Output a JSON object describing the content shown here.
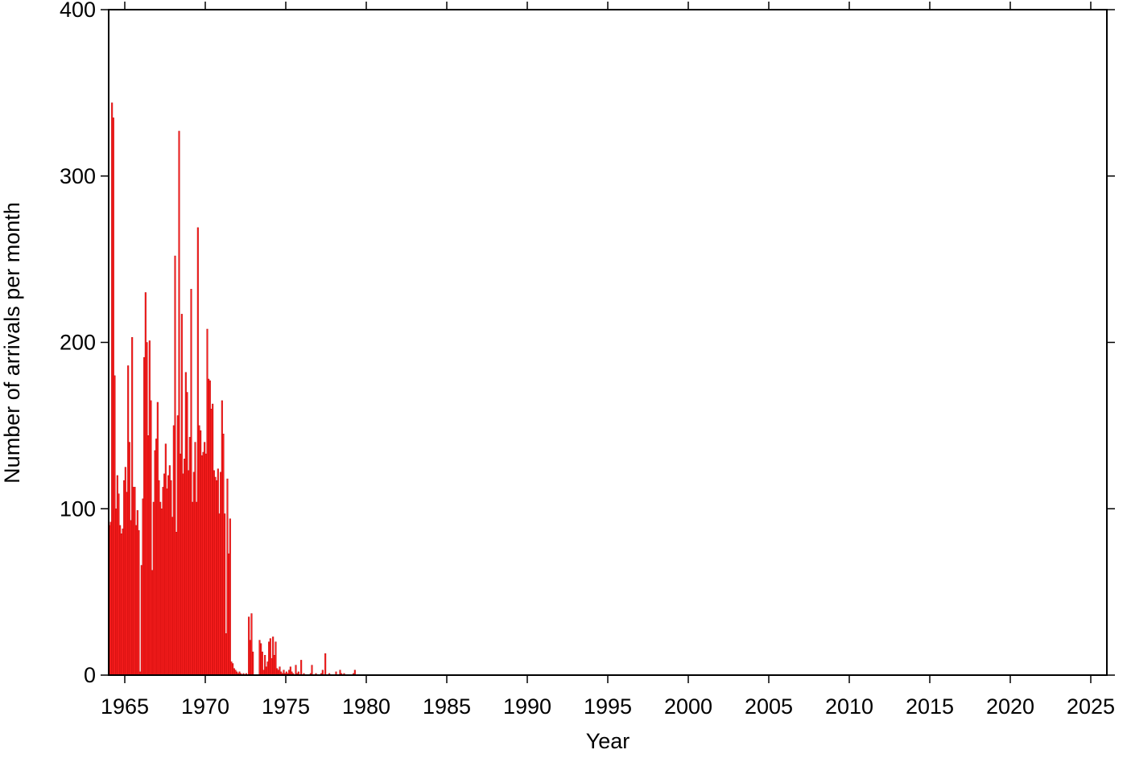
{
  "chart_data": {
    "type": "histogram",
    "x_label": "Year",
    "y_label": "Number of arrivals per month",
    "color": "#ff2020",
    "xlim": [
      1964,
      2026
    ],
    "xticks": [
      1965,
      1970,
      1975,
      1980,
      1985,
      1990,
      1995,
      2000,
      2005,
      2010,
      2015,
      2020,
      2025
    ],
    "ylim": [
      0,
      400
    ],
    "yticks": [
      0,
      100,
      200,
      300,
      400
    ],
    "bins": [
      1964,
      1964.083,
      1964.167,
      1964.25,
      1964.333,
      1964.417,
      1964.5,
      1964.583,
      1964.667,
      1964.75,
      1964.833,
      1964.917,
      1965,
      1965.083,
      1965.167,
      1965.25,
      1965.333,
      1965.417,
      1965.5,
      1965.583,
      1965.667,
      1965.75,
      1965.833,
      1965.917,
      1966,
      1966.083,
      1966.167,
      1966.25,
      1966.333,
      1966.417,
      1966.5,
      1966.583,
      1966.667,
      1966.75,
      1966.833,
      1966.917,
      1967,
      1967.083,
      1967.167,
      1967.25,
      1967.333,
      1967.417,
      1967.5,
      1967.583,
      1967.667,
      1967.75,
      1967.833,
      1967.917,
      1968,
      1968.083,
      1968.167,
      1968.25,
      1968.333,
      1968.417,
      1968.5,
      1968.583,
      1968.667,
      1968.75,
      1968.833,
      1968.917,
      1969,
      1969.083,
      1969.167,
      1969.25,
      1969.333,
      1969.417,
      1969.5,
      1969.583,
      1969.667,
      1969.75,
      1969.833,
      1969.917,
      1970,
      1970.083,
      1970.167,
      1970.25,
      1970.333,
      1970.417,
      1970.5,
      1970.583,
      1970.667,
      1970.75,
      1970.833,
      1970.917,
      1971,
      1971.083,
      1971.167,
      1971.25,
      1971.333,
      1971.417,
      1971.5,
      1971.583,
      1971.667,
      1971.75,
      1971.833,
      1971.917,
      1972,
      1972.083,
      1972.167,
      1972.25,
      1972.333,
      1972.417,
      1972.5,
      1972.583,
      1972.667,
      1972.75,
      1972.833,
      1972.917,
      1973,
      1973.083,
      1973.167,
      1973.25,
      1973.333,
      1973.417,
      1973.5,
      1973.583,
      1973.667,
      1973.75,
      1973.833,
      1973.917,
      1974,
      1974.083,
      1974.167,
      1974.25,
      1974.333,
      1974.417,
      1974.5,
      1974.583,
      1974.667,
      1974.75,
      1974.833,
      1974.917,
      1975,
      1975.083,
      1975.167,
      1975.25,
      1975.333,
      1975.417,
      1975.5,
      1975.583,
      1975.667,
      1975.75,
      1975.833,
      1975.917,
      1976,
      1976.083,
      1976.167,
      1976.25,
      1976.333,
      1976.417,
      1976.5,
      1976.583,
      1976.667,
      1976.75,
      1976.833,
      1976.917,
      1977,
      1977.083,
      1977.167,
      1977.25,
      1977.333,
      1977.417,
      1977.5,
      1977.583,
      1977.667,
      1977.75,
      1977.833,
      1977.917,
      1978,
      1978.083,
      1978.167,
      1978.25,
      1978.333,
      1978.417,
      1978.5,
      1978.583,
      1978.667,
      1978.75,
      1978.833,
      1978.917,
      1979,
      1979.083,
      1979.167,
      1979.25,
      1979.333,
      1979.417,
      1979.5,
      1979.583,
      1979.667,
      1979.75,
      1979.833,
      1979.917,
      1980
    ],
    "values": [
      90,
      92,
      344,
      335,
      180,
      100,
      120,
      109,
      90,
      85,
      88,
      117,
      125,
      110,
      186,
      140,
      93,
      203,
      113,
      113,
      90,
      99,
      87,
      2,
      66,
      106,
      191,
      230,
      200,
      144,
      201,
      165,
      63,
      104,
      135,
      142,
      164,
      117,
      104,
      100,
      113,
      121,
      139,
      112,
      120,
      126,
      117,
      95,
      150,
      252,
      86,
      156,
      327,
      133,
      217,
      121,
      130,
      182,
      170,
      123,
      143,
      232,
      104,
      122,
      140,
      104,
      269,
      150,
      147,
      132,
      134,
      140,
      133,
      208,
      178,
      177,
      160,
      163,
      123,
      119,
      117,
      124,
      97,
      122,
      165,
      145,
      97,
      25,
      118,
      73,
      94,
      8,
      7,
      4,
      3,
      2,
      1,
      2,
      1,
      0,
      1,
      0,
      1,
      0,
      35,
      21,
      37,
      14,
      0,
      0,
      0,
      0,
      21,
      19,
      14,
      3,
      12,
      5,
      8,
      20,
      22,
      10,
      23,
      12,
      20,
      4,
      3,
      5,
      2,
      1,
      3,
      1,
      2,
      1,
      3,
      5,
      2,
      1,
      0,
      6,
      1,
      2,
      0,
      9,
      0,
      1,
      0,
      0,
      0,
      0,
      1,
      6,
      0,
      0,
      1,
      0,
      0,
      0,
      1,
      3,
      0,
      13,
      0,
      0,
      1,
      0,
      0,
      0,
      0,
      2,
      0,
      0,
      3,
      1,
      0,
      1,
      0,
      0,
      0,
      0,
      0,
      0,
      1,
      3,
      0,
      0,
      0,
      0,
      0,
      0,
      0,
      0
    ]
  }
}
